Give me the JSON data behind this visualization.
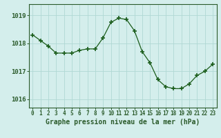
{
  "x": [
    0,
    1,
    2,
    3,
    4,
    5,
    6,
    7,
    8,
    9,
    10,
    11,
    12,
    13,
    14,
    15,
    16,
    17,
    18,
    19,
    20,
    21,
    22,
    23
  ],
  "y": [
    1018.3,
    1018.1,
    1017.9,
    1017.65,
    1017.65,
    1017.65,
    1017.75,
    1017.8,
    1017.8,
    1018.2,
    1018.75,
    1018.9,
    1018.85,
    1018.45,
    1017.7,
    1017.3,
    1016.7,
    1016.45,
    1016.38,
    1016.38,
    1016.55,
    1016.85,
    1017.0,
    1017.25
  ],
  "line_color": "#1a5c1a",
  "marker": "+",
  "marker_size": 4,
  "marker_linewidth": 1.2,
  "background_color": "#d4eeec",
  "grid_color": "#b0d8d4",
  "grid_linewidth": 0.6,
  "axis_color": "#2a5a2a",
  "xlabel": "Graphe pression niveau de la mer (hPa)",
  "xlabel_fontsize": 7,
  "ytick_labels": [
    "1016",
    "1017",
    "1018",
    "1019"
  ],
  "yticks": [
    1016,
    1017,
    1018,
    1019
  ],
  "ylim": [
    1015.7,
    1019.4
  ],
  "xlim": [
    -0.5,
    23.5
  ],
  "xticks": [
    0,
    1,
    2,
    3,
    4,
    5,
    6,
    7,
    8,
    9,
    10,
    11,
    12,
    13,
    14,
    15,
    16,
    17,
    18,
    19,
    20,
    21,
    22,
    23
  ],
  "tick_fontsize": 5.5,
  "ytick_fontsize": 6.5
}
